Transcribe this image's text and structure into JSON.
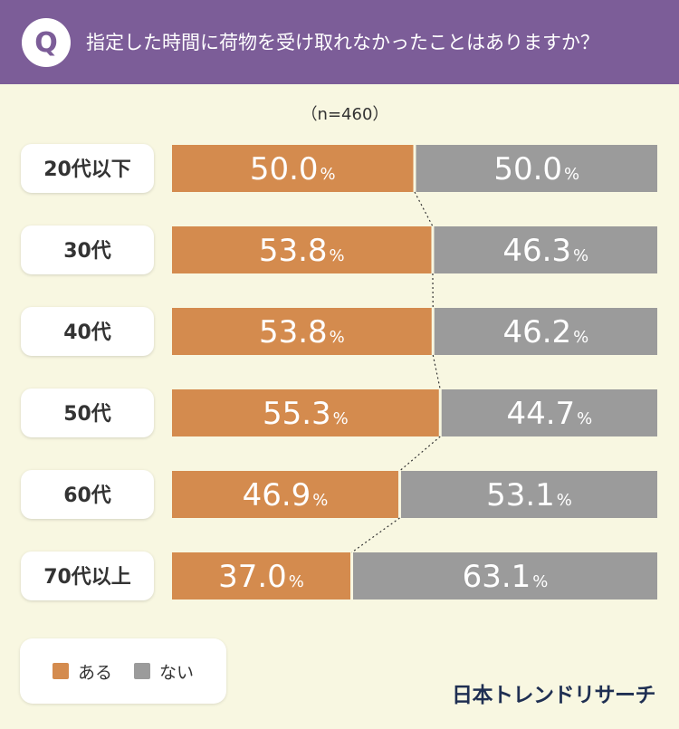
{
  "header": {
    "q_mark": "Q",
    "question": "指定した時間に荷物を受け取れなかったことはありますか？"
  },
  "sample_note": "（n=460）",
  "colors": {
    "header_bg": "#7c5d98",
    "background": "#f8f7e1",
    "aru": "#d48b4e",
    "nai": "#9b9b9b"
  },
  "legend": {
    "aru_label": "ある",
    "nai_label": "ない"
  },
  "brand": "日本トレンドリサーチ",
  "chart_data": {
    "type": "bar",
    "orientation": "horizontal",
    "stacked": true,
    "normalized": true,
    "categories": [
      "20代以下",
      "30代",
      "40代",
      "50代",
      "60代",
      "70代以上"
    ],
    "series": [
      {
        "name": "ある",
        "values": [
          50.0,
          53.8,
          53.8,
          55.3,
          46.9,
          37.0
        ],
        "labels": [
          "50.0",
          "53.8",
          "53.8",
          "55.3",
          "46.9",
          "37.0"
        ],
        "color": "#d48b4e"
      },
      {
        "name": "ない",
        "values": [
          50.0,
          46.3,
          46.2,
          44.7,
          53.1,
          63.1
        ],
        "labels": [
          "50.0",
          "46.3",
          "46.2",
          "44.7",
          "53.1",
          "63.1"
        ],
        "color": "#9b9b9b"
      }
    ],
    "unit": "%",
    "legend_position": "bottom-left",
    "connector_lines": "dotted"
  }
}
